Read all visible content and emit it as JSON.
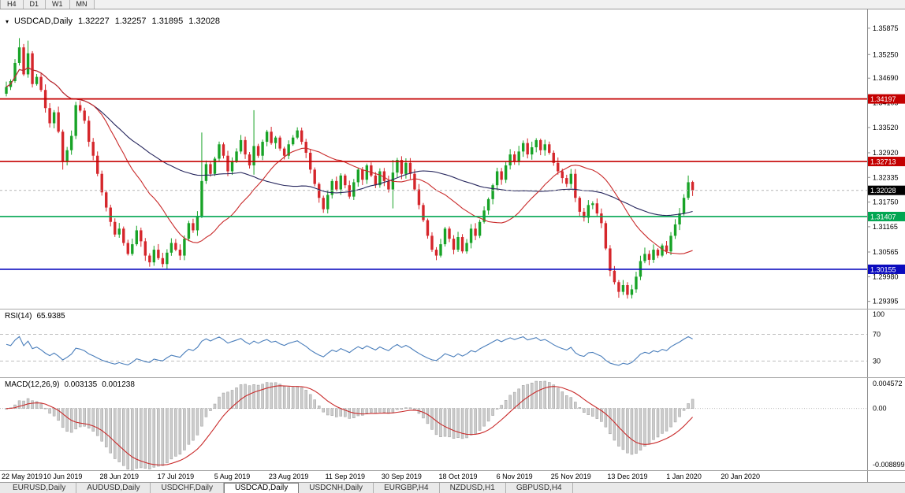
{
  "colors": {
    "bull": "#18a327",
    "bear": "#d5262b",
    "ma_fast": "#c92a2a",
    "ma_slow": "#25255c",
    "hline_red": "#c40000",
    "hline_green": "#00a651",
    "hline_blue": "#0b0bbe",
    "rsi": "#4a7ebb",
    "macd_hist": "#cccccc",
    "macd_hist_border": "#9c9c9c",
    "macd_signal": "#c92a2a",
    "tag_current": "#000000"
  },
  "toolbar": {
    "periods": [
      "H4",
      "D1",
      "W1",
      "MN"
    ]
  },
  "chart_title": {
    "symbol": "USDCAD,Daily",
    "open": "1.32227",
    "high": "1.32257",
    "low": "1.31895",
    "close": "1.32028"
  },
  "price_axis": {
    "ticks": [
      "1.35875",
      "1.35250",
      "1.34690",
      "1.34105",
      "1.33520",
      "1.32920",
      "1.32335",
      "1.31750",
      "1.31165",
      "1.30565",
      "1.29980",
      "1.29395"
    ]
  },
  "hlines": [
    {
      "label": "1.34197",
      "color": "hline_red"
    },
    {
      "label": "1.32713",
      "color": "hline_red"
    },
    {
      "label": "1.31407",
      "color": "hline_green"
    },
    {
      "label": "1.30155",
      "color": "hline_blue"
    }
  ],
  "current_price": {
    "label": "1.32028"
  },
  "rsi": {
    "label": "RSI(14)",
    "value": "65.9385",
    "period": 14,
    "levels": [
      {
        "label": "100",
        "value": 100,
        "dashed": false
      },
      {
        "label": "70",
        "value": 70,
        "dashed": true
      },
      {
        "label": "30",
        "value": 30,
        "dashed": true
      }
    ]
  },
  "macd": {
    "label": "MACD(12,26,9)",
    "value": "0.003135",
    "signal": "0.001238",
    "fast": 12,
    "slow": 26,
    "signal_period": 9,
    "axis_labels": {
      "top": "0.004572",
      "zero": "0.00",
      "bottom": "-0.008899"
    }
  },
  "dates": {
    "labels": [
      "22 May 2019",
      "10 Jun 2019",
      "28 Jun 2019",
      "17 Jul 2019",
      "5 Aug 2019",
      "23 Aug 2019",
      "11 Sep 2019",
      "30 Sep 2019",
      "18 Oct 2019",
      "6 Nov 2019",
      "25 Nov 2019",
      "13 Dec 2019",
      "1 Jan 2020",
      "20 Jan 2020"
    ],
    "step": 13
  },
  "tabs": [
    {
      "label": "EURUSD,Daily",
      "active": false
    },
    {
      "label": "AUDUSD,Daily",
      "active": false
    },
    {
      "label": "USDCHF,Daily",
      "active": false
    },
    {
      "label": "USDCAD,Daily",
      "active": true
    },
    {
      "label": "USDCNH,Daily",
      "active": false
    },
    {
      "label": "EURGBP,H4",
      "active": false
    },
    {
      "label": "NZDUSD,H1",
      "active": false
    },
    {
      "label": "GBPUSD,H4",
      "active": false
    }
  ],
  "chart_data": {
    "type": "candlestick",
    "title": "USDCAD,Daily",
    "ylim": [
      1.2922,
      1.3632
    ],
    "first_open": 1.3432,
    "closes": [
      1.3448,
      1.3462,
      1.3505,
      1.3542,
      1.3478,
      1.3528,
      1.3455,
      1.3472,
      1.3441,
      1.3398,
      1.3362,
      1.3388,
      1.3342,
      1.3272,
      1.3298,
      1.3332,
      1.3405,
      1.3392,
      1.3368,
      1.3318,
      1.3285,
      1.3242,
      1.3198,
      1.3162,
      1.3128,
      1.3098,
      1.3112,
      1.3078,
      1.3052,
      1.3075,
      1.3108,
      1.3082,
      1.3048,
      1.3032,
      1.3062,
      1.3042,
      1.3028,
      1.3055,
      1.3078,
      1.3062,
      1.3048,
      1.3088,
      1.3125,
      1.3108,
      1.3142,
      1.3225,
      1.3265,
      1.3242,
      1.3278,
      1.3312,
      1.3285,
      1.3248,
      1.3272,
      1.3295,
      1.3322,
      1.3288,
      1.3262,
      1.3308,
      1.3285,
      1.3318,
      1.3342,
      1.3315,
      1.3328,
      1.3302,
      1.3285,
      1.3312,
      1.3328,
      1.3345,
      1.3318,
      1.3292,
      1.3252,
      1.3218,
      1.3185,
      1.3158,
      1.3192,
      1.3225,
      1.3205,
      1.3238,
      1.3215,
      1.3188,
      1.3222,
      1.3252,
      1.3228,
      1.3262,
      1.3238,
      1.3215,
      1.3248,
      1.3225,
      1.3205,
      1.3245,
      1.3275,
      1.3242,
      1.3268,
      1.3242,
      1.3205,
      1.3168,
      1.3132,
      1.3095,
      1.3062,
      1.3048,
      1.3075,
      1.3112,
      1.3088,
      1.3062,
      1.3092,
      1.3058,
      1.3078,
      1.3112,
      1.3095,
      1.3128,
      1.3155,
      1.3182,
      1.3215,
      1.3248,
      1.3228,
      1.3262,
      1.3288,
      1.3272,
      1.3295,
      1.3315,
      1.3288,
      1.3305,
      1.3322,
      1.3298,
      1.3312,
      1.3292,
      1.3268,
      1.3248,
      1.3232,
      1.3218,
      1.3242,
      1.3185,
      1.3152,
      1.3138,
      1.3168,
      1.3172,
      1.3148,
      1.3125,
      1.3065,
      1.3012,
      1.2985,
      1.2962,
      1.2978,
      1.2955,
      1.2968,
      1.2998,
      1.3035,
      1.3052,
      1.3038,
      1.3062,
      1.3048,
      1.3072,
      1.3058,
      1.3095,
      1.3122,
      1.3148,
      1.3185,
      1.3222,
      1.3203
    ],
    "wick_default": 0.001,
    "wick_overrides": {
      "3": [
        0.0022,
        0.0006
      ],
      "5": [
        0.003,
        0.0008
      ],
      "13": [
        0.0005,
        0.002
      ],
      "45": [
        0.0115,
        0.0005
      ],
      "57": [
        0.0085,
        0.0022
      ],
      "89": [
        0.003,
        0.0045
      ],
      "141": [
        0.0005,
        0.0014
      ],
      "143": [
        0.0007,
        0.0009
      ],
      "147": [
        0.0015,
        0.0005
      ],
      "157": [
        0.0016,
        0.0005
      ]
    },
    "last_bar": {
      "open": 1.32227,
      "high": 1.32257,
      "low": 1.31895,
      "close": 1.32028
    },
    "ma_fast_period": 21,
    "ma_slow_period": 55
  }
}
